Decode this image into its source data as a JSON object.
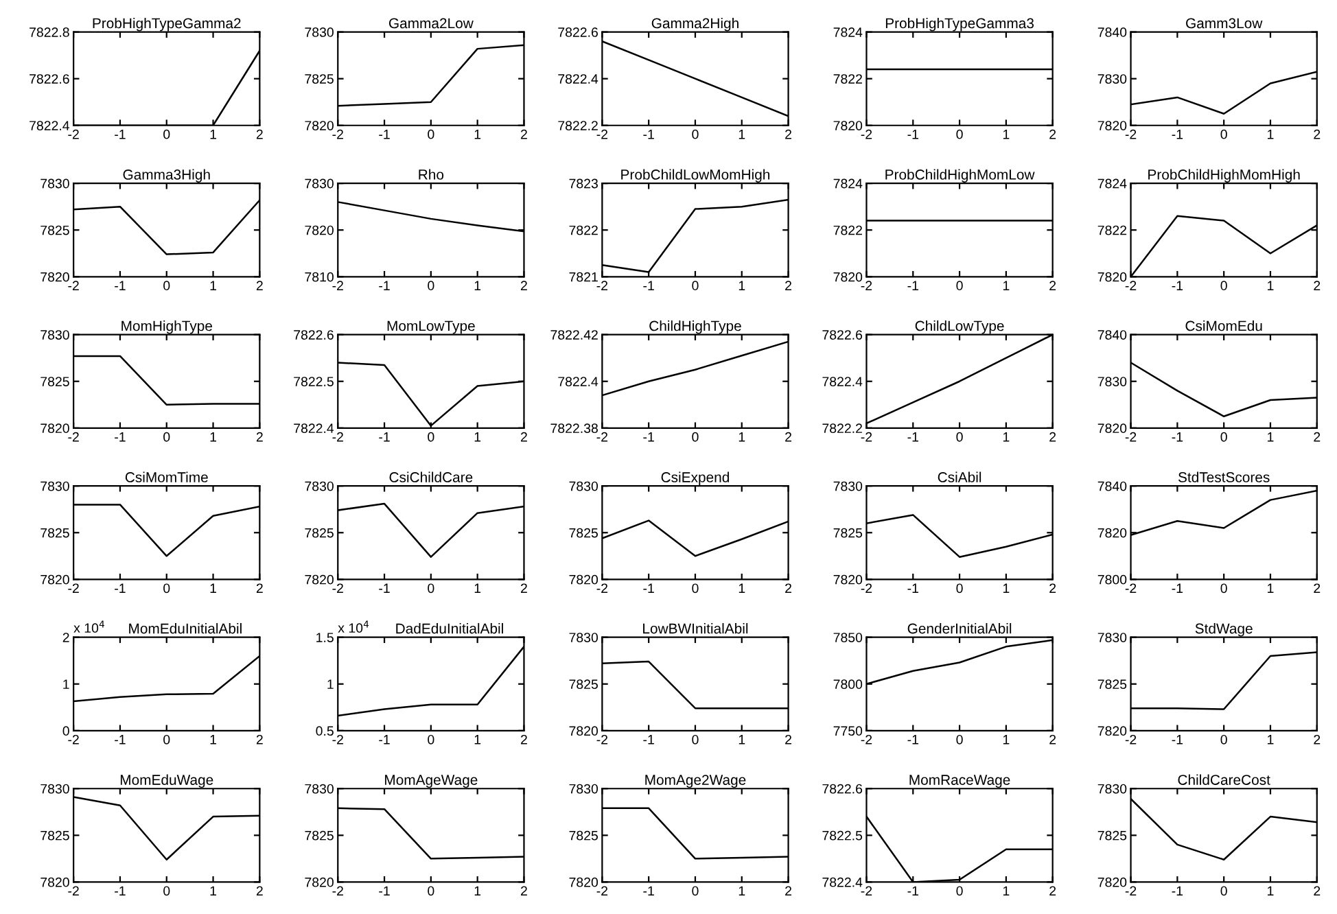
{
  "chart_data": [
    {
      "type": "line",
      "title": "ProbHighTypeGamma2",
      "x": [
        -2,
        -1,
        0,
        1,
        2
      ],
      "values": [
        7822.4,
        7822.4,
        7822.4,
        7822.4,
        7822.72
      ],
      "color": "#000000",
      "xlim": [
        -2,
        2
      ],
      "xticks": [
        -2,
        -1,
        0,
        1,
        2
      ],
      "ylim": [
        7822.4,
        7822.8
      ],
      "yticks": [
        7822.4,
        7822.6,
        7822.8
      ]
    },
    {
      "type": "line",
      "title": "Gamma2Low",
      "x": [
        -2,
        -1,
        0,
        1,
        2
      ],
      "values": [
        7822.1,
        7822.3,
        7822.5,
        7828.2,
        7828.6
      ],
      "color": "#000000",
      "xlim": [
        -2,
        2
      ],
      "xticks": [
        -2,
        -1,
        0,
        1,
        2
      ],
      "ylim": [
        7820,
        7830
      ],
      "yticks": [
        7820,
        7825,
        7830
      ]
    },
    {
      "type": "line",
      "title": "Gamma2High",
      "x": [
        -2,
        -1,
        0,
        1,
        2
      ],
      "values": [
        7822.56,
        7822.48,
        7822.4,
        7822.32,
        7822.24
      ],
      "color": "#000000",
      "xlim": [
        -2,
        2
      ],
      "xticks": [
        -2,
        -1,
        0,
        1,
        2
      ],
      "ylim": [
        7822.2,
        7822.6
      ],
      "yticks": [
        7822.2,
        7822.4,
        7822.6
      ]
    },
    {
      "type": "line",
      "title": "ProbHighTypeGamma3",
      "x": [
        -2,
        -1,
        0,
        1,
        2
      ],
      "values": [
        7822.4,
        7822.4,
        7822.4,
        7822.4,
        7822.4
      ],
      "color": "#000000",
      "xlim": [
        -2,
        2
      ],
      "xticks": [
        -2,
        -1,
        0,
        1,
        2
      ],
      "ylim": [
        7820,
        7824
      ],
      "yticks": [
        7820,
        7822,
        7824
      ]
    },
    {
      "type": "line",
      "title": "Gamm3Low",
      "x": [
        -2,
        -1,
        0,
        1,
        2
      ],
      "values": [
        7824.5,
        7826,
        7822.5,
        7829,
        7831.5
      ],
      "color": "#000000",
      "xlim": [
        -2,
        2
      ],
      "xticks": [
        -2,
        -1,
        0,
        1,
        2
      ],
      "ylim": [
        7820,
        7840
      ],
      "yticks": [
        7820,
        7830,
        7840
      ]
    },
    {
      "type": "line",
      "title": "Gamma3High",
      "x": [
        -2,
        -1,
        0,
        1,
        2
      ],
      "values": [
        7827.2,
        7827.5,
        7822.4,
        7822.6,
        7828.2
      ],
      "color": "#000000",
      "xlim": [
        -2,
        2
      ],
      "xticks": [
        -2,
        -1,
        0,
        1,
        2
      ],
      "ylim": [
        7820,
        7830
      ],
      "yticks": [
        7820,
        7825,
        7830
      ]
    },
    {
      "type": "line",
      "title": "Rho",
      "x": [
        -2,
        -1,
        0,
        1,
        2
      ],
      "values": [
        7826,
        7824.2,
        7822.4,
        7821,
        7819.7
      ],
      "color": "#000000",
      "xlim": [
        -2,
        2
      ],
      "xticks": [
        -2,
        -1,
        0,
        1,
        2
      ],
      "ylim": [
        7810,
        7830
      ],
      "yticks": [
        7810,
        7820,
        7830
      ]
    },
    {
      "type": "line",
      "title": "ProbChildLowMomHigh",
      "x": [
        -2,
        -1,
        0,
        1,
        2
      ],
      "values": [
        7821.25,
        7821.1,
        7822.45,
        7822.5,
        7822.65
      ],
      "color": "#000000",
      "xlim": [
        -2,
        2
      ],
      "xticks": [
        -2,
        -1,
        0,
        1,
        2
      ],
      "ylim": [
        7821,
        7823
      ],
      "yticks": [
        7821,
        7822,
        7823
      ]
    },
    {
      "type": "line",
      "title": "ProbChildHighMomLow",
      "x": [
        -2,
        -1,
        0,
        1,
        2
      ],
      "values": [
        7822.4,
        7822.4,
        7822.4,
        7822.4,
        7822.4
      ],
      "color": "#000000",
      "xlim": [
        -2,
        2
      ],
      "xticks": [
        -2,
        -1,
        0,
        1,
        2
      ],
      "ylim": [
        7820,
        7824
      ],
      "yticks": [
        7820,
        7822,
        7824
      ]
    },
    {
      "type": "line",
      "title": "ProbChildHighMomHigh",
      "x": [
        -2,
        -1,
        0,
        1,
        2
      ],
      "values": [
        7820,
        7822.6,
        7822.4,
        7821,
        7822.2
      ],
      "color": "#000000",
      "xlim": [
        -2,
        2
      ],
      "xticks": [
        -2,
        -1,
        0,
        1,
        2
      ],
      "ylim": [
        7820,
        7824
      ],
      "yticks": [
        7820,
        7822,
        7824
      ]
    },
    {
      "type": "line",
      "title": "MomHighType",
      "x": [
        -2,
        -1,
        0,
        1,
        2
      ],
      "values": [
        7827.7,
        7827.7,
        7822.5,
        7822.6,
        7822.6
      ],
      "color": "#000000",
      "xlim": [
        -2,
        2
      ],
      "xticks": [
        -2,
        -1,
        0,
        1,
        2
      ],
      "ylim": [
        7820,
        7830
      ],
      "yticks": [
        7820,
        7825,
        7830
      ]
    },
    {
      "type": "line",
      "title": "MomLowType",
      "x": [
        -2,
        -1,
        0,
        1,
        2
      ],
      "values": [
        7822.54,
        7822.535,
        7822.405,
        7822.49,
        7822.5
      ],
      "color": "#000000",
      "xlim": [
        -2,
        2
      ],
      "xticks": [
        -2,
        -1,
        0,
        1,
        2
      ],
      "ylim": [
        7822.4,
        7822.6
      ],
      "yticks": [
        7822.4,
        7822.5,
        7822.6
      ]
    },
    {
      "type": "line",
      "title": "ChildHighType",
      "x": [
        -2,
        -1,
        0,
        1,
        2
      ],
      "values": [
        7822.394,
        7822.4,
        7822.405,
        7822.411,
        7822.417
      ],
      "color": "#000000",
      "xlim": [
        -2,
        2
      ],
      "xticks": [
        -2,
        -1,
        0,
        1,
        2
      ],
      "ylim": [
        7822.38,
        7822.42
      ],
      "yticks": [
        7822.38,
        7822.4,
        7822.42
      ]
    },
    {
      "type": "line",
      "title": "ChildLowType",
      "x": [
        -2,
        -1,
        0,
        1,
        2
      ],
      "values": [
        7822.22,
        7822.31,
        7822.4,
        7822.5,
        7822.6
      ],
      "color": "#000000",
      "xlim": [
        -2,
        2
      ],
      "xticks": [
        -2,
        -1,
        0,
        1,
        2
      ],
      "ylim": [
        7822.2,
        7822.6
      ],
      "yticks": [
        7822.2,
        7822.4,
        7822.6
      ]
    },
    {
      "type": "line",
      "title": "CsiMomEdu",
      "x": [
        -2,
        -1,
        0,
        1,
        2
      ],
      "values": [
        7834,
        7828,
        7822.5,
        7826,
        7826.5
      ],
      "color": "#000000",
      "xlim": [
        -2,
        2
      ],
      "xticks": [
        -2,
        -1,
        0,
        1,
        2
      ],
      "ylim": [
        7820,
        7840
      ],
      "yticks": [
        7820,
        7830,
        7840
      ]
    },
    {
      "type": "line",
      "title": "CsiMomTime",
      "x": [
        -2,
        -1,
        0,
        1,
        2
      ],
      "values": [
        7828,
        7828,
        7822.5,
        7826.8,
        7827.8
      ],
      "color": "#000000",
      "xlim": [
        -2,
        2
      ],
      "xticks": [
        -2,
        -1,
        0,
        1,
        2
      ],
      "ylim": [
        7820,
        7830
      ],
      "yticks": [
        7820,
        7825,
        7830
      ]
    },
    {
      "type": "line",
      "title": "CsiChildCare",
      "x": [
        -2,
        -1,
        0,
        1,
        2
      ],
      "values": [
        7827.4,
        7828.1,
        7822.4,
        7827.1,
        7827.8
      ],
      "color": "#000000",
      "xlim": [
        -2,
        2
      ],
      "xticks": [
        -2,
        -1,
        0,
        1,
        2
      ],
      "ylim": [
        7820,
        7830
      ],
      "yticks": [
        7820,
        7825,
        7830
      ]
    },
    {
      "type": "line",
      "title": "CsiExpend",
      "x": [
        -2,
        -1,
        0,
        1,
        2
      ],
      "values": [
        7824.4,
        7826.3,
        7822.5,
        7824.3,
        7826.2
      ],
      "color": "#000000",
      "xlim": [
        -2,
        2
      ],
      "xticks": [
        -2,
        -1,
        0,
        1,
        2
      ],
      "ylim": [
        7820,
        7830
      ],
      "yticks": [
        7820,
        7825,
        7830
      ]
    },
    {
      "type": "line",
      "title": "CsiAbil",
      "x": [
        -2,
        -1,
        0,
        1,
        2
      ],
      "values": [
        7826,
        7826.9,
        7822.4,
        7823.5,
        7824.8
      ],
      "color": "#000000",
      "xlim": [
        -2,
        2
      ],
      "xticks": [
        -2,
        -1,
        0,
        1,
        2
      ],
      "ylim": [
        7820,
        7830
      ],
      "yticks": [
        7820,
        7825,
        7830
      ]
    },
    {
      "type": "line",
      "title": "StdTestScores",
      "x": [
        -2,
        -1,
        0,
        1,
        2
      ],
      "values": [
        7819,
        7825,
        7822,
        7834,
        7838
      ],
      "color": "#000000",
      "xlim": [
        -2,
        2
      ],
      "xticks": [
        -2,
        -1,
        0,
        1,
        2
      ],
      "ylim": [
        7800,
        7840
      ],
      "yticks": [
        7800,
        7820,
        7840
      ]
    },
    {
      "type": "line",
      "title": "MomEduInitialAbil",
      "x": [
        -2,
        -1,
        0,
        1,
        2
      ],
      "values": [
        0.63,
        0.72,
        0.78,
        0.79,
        1.6
      ],
      "color": "#000000",
      "xlim": [
        -2,
        2
      ],
      "xticks": [
        -2,
        -1,
        0,
        1,
        2
      ],
      "ylim": [
        0,
        2
      ],
      "yticks": [
        0,
        1,
        2
      ],
      "annotations": [
        "x 10$^{4}$"
      ]
    },
    {
      "type": "line",
      "title": "DadEduInitialAbil",
      "x": [
        -2,
        -1,
        0,
        1,
        2
      ],
      "values": [
        0.66,
        0.73,
        0.78,
        0.78,
        1.4
      ],
      "color": "#000000",
      "xlim": [
        -2,
        2
      ],
      "xticks": [
        -2,
        -1,
        0,
        1,
        2
      ],
      "ylim": [
        0.5,
        1.5
      ],
      "yticks": [
        0.5,
        1,
        1.5
      ],
      "annotations": [
        "x 10$^{4}$"
      ]
    },
    {
      "type": "line",
      "title": "LowBWInitialAbil",
      "x": [
        -2,
        -1,
        0,
        1,
        2
      ],
      "values": [
        7827.2,
        7827.4,
        7822.4,
        7822.4,
        7822.4
      ],
      "color": "#000000",
      "xlim": [
        -2,
        2
      ],
      "xticks": [
        -2,
        -1,
        0,
        1,
        2
      ],
      "ylim": [
        7820,
        7830
      ],
      "yticks": [
        7820,
        7825,
        7830
      ]
    },
    {
      "type": "line",
      "title": "GenderInitialAbil",
      "x": [
        -2,
        -1,
        0,
        1,
        2
      ],
      "values": [
        7800,
        7814,
        7823,
        7840,
        7847
      ],
      "color": "#000000",
      "xlim": [
        -2,
        2
      ],
      "xticks": [
        -2,
        -1,
        0,
        1,
        2
      ],
      "ylim": [
        7750,
        7850
      ],
      "yticks": [
        7750,
        7800,
        7850
      ]
    },
    {
      "type": "line",
      "title": "StdWage",
      "x": [
        -2,
        -1,
        0,
        1,
        2
      ],
      "values": [
        7822.4,
        7822.4,
        7822.3,
        7828,
        7828.4
      ],
      "color": "#000000",
      "xlim": [
        -2,
        2
      ],
      "xticks": [
        -2,
        -1,
        0,
        1,
        2
      ],
      "ylim": [
        7820,
        7830
      ],
      "yticks": [
        7820,
        7825,
        7830
      ]
    },
    {
      "type": "line",
      "title": "MomEduWage",
      "x": [
        -2,
        -1,
        0,
        1,
        2
      ],
      "values": [
        7829.1,
        7828.2,
        7822.4,
        7827,
        7827.1
      ],
      "color": "#000000",
      "xlim": [
        -2,
        2
      ],
      "xticks": [
        -2,
        -1,
        0,
        1,
        2
      ],
      "ylim": [
        7820,
        7830
      ],
      "yticks": [
        7820,
        7825,
        7830
      ]
    },
    {
      "type": "line",
      "title": "MomAgeWage",
      "x": [
        -2,
        -1,
        0,
        1,
        2
      ],
      "values": [
        7827.9,
        7827.8,
        7822.5,
        7822.6,
        7822.7
      ],
      "color": "#000000",
      "xlim": [
        -2,
        2
      ],
      "xticks": [
        -2,
        -1,
        0,
        1,
        2
      ],
      "ylim": [
        7820,
        7830
      ],
      "yticks": [
        7820,
        7825,
        7830
      ]
    },
    {
      "type": "line",
      "title": "MomAge2Wage",
      "x": [
        -2,
        -1,
        0,
        1,
        2
      ],
      "values": [
        7827.9,
        7827.9,
        7822.5,
        7822.6,
        7822.7
      ],
      "color": "#000000",
      "xlim": [
        -2,
        2
      ],
      "xticks": [
        -2,
        -1,
        0,
        1,
        2
      ],
      "ylim": [
        7820,
        7830
      ],
      "yticks": [
        7820,
        7825,
        7830
      ]
    },
    {
      "type": "line",
      "title": "MomRaceWage",
      "x": [
        -2,
        -1,
        0,
        1,
        2
      ],
      "values": [
        7822.54,
        7822.4,
        7822.405,
        7822.47,
        7822.47
      ],
      "color": "#000000",
      "xlim": [
        -2,
        2
      ],
      "xticks": [
        -2,
        -1,
        0,
        1,
        2
      ],
      "ylim": [
        7822.4,
        7822.6
      ],
      "yticks": [
        7822.4,
        7822.5,
        7822.6
      ]
    },
    {
      "type": "line",
      "title": "ChildCareCost",
      "x": [
        -2,
        -1,
        0,
        1,
        2
      ],
      "values": [
        7828.9,
        7824,
        7822.4,
        7827,
        7826.4
      ],
      "color": "#000000",
      "xlim": [
        -2,
        2
      ],
      "xticks": [
        -2,
        -1,
        0,
        1,
        2
      ],
      "ylim": [
        7820,
        7830
      ],
      "yticks": [
        7820,
        7825,
        7830
      ]
    }
  ]
}
